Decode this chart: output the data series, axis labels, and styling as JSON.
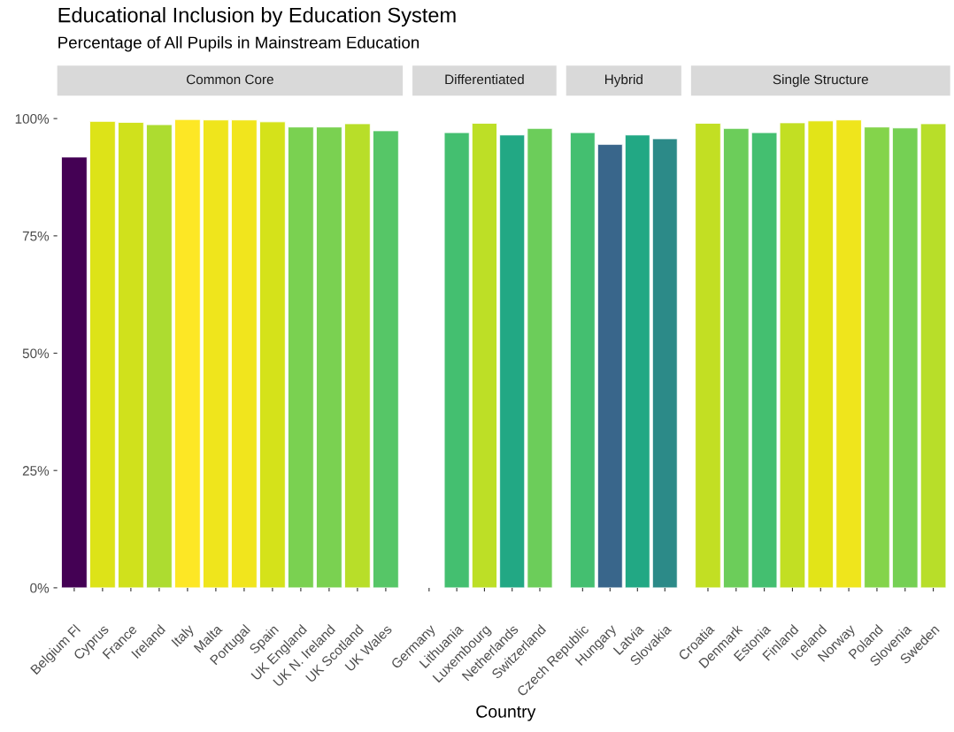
{
  "chart_data": [
    {
      "type": "bar",
      "title": "Educational Inclusion by Education System",
      "subtitle": "Percentage of All Pupils in Mainstream Education",
      "xlabel": "Country",
      "annotations": [
        "Common Core"
      ],
      "categories": [
        "Belgium Fl",
        "Cyprus",
        "France",
        "Ireland",
        "Italy",
        "Malta",
        "Portugal",
        "Spain",
        "UK England",
        "UK N. Ireland",
        "UK Scotland",
        "UK Wales"
      ],
      "values": [
        91.8,
        99.4,
        99.2,
        98.7,
        99.8,
        99.7,
        99.7,
        99.3,
        98.2,
        98.2,
        98.9,
        97.4
      ],
      "colors": [
        "#440154",
        "#dde318",
        "#d0e11c",
        "#addc30",
        "#fde725",
        "#efe51c",
        "#f1e51d",
        "#d5e21a",
        "#7ad151",
        "#7ad151",
        "#b8de29",
        "#56c667"
      ],
      "ylim": [
        0,
        100
      ],
      "yticks": [
        {
          "value": 0,
          "label": "0%"
        },
        {
          "value": 25,
          "label": "25%"
        },
        {
          "value": 50,
          "label": "50%"
        },
        {
          "value": 75,
          "label": "75%"
        },
        {
          "value": 100,
          "label": "100%"
        }
      ],
      "grid": false,
      "legend": false
    },
    {
      "type": "bar",
      "annotations": [
        "Differentiated"
      ],
      "categories": [
        "Germany",
        "Lithuania",
        "Luxembourg",
        "Netherlands",
        "Switzerland"
      ],
      "values": [
        null,
        97.0,
        99.0,
        96.5,
        97.9
      ],
      "colors": [
        "#ffffff",
        "#44bf70",
        "#bddf26",
        "#22a884",
        "#6ccd5a"
      ],
      "ylim": [
        0,
        100
      ],
      "tick_labels": "x",
      "grid": false,
      "legend": false
    },
    {
      "type": "bar",
      "annotations": [
        "Hybrid"
      ],
      "categories": [
        "Czech Republic",
        "Hungary",
        "Latvia",
        "Slovakia"
      ],
      "values": [
        97.0,
        94.5,
        96.5,
        95.7
      ],
      "colors": [
        "#44bf70",
        "#39668b",
        "#22a884",
        "#2c8a88"
      ],
      "ylim": [
        0,
        100
      ],
      "tick_labels": "x",
      "grid": false,
      "legend": false
    },
    {
      "type": "bar",
      "annotations": [
        "Single Structure"
      ],
      "categories": [
        "Croatia",
        "Denmark",
        "Estonia",
        "Finland",
        "Iceland",
        "Norway",
        "Poland",
        "Slovenia",
        "Sweden"
      ],
      "values": [
        99.0,
        97.9,
        97.0,
        99.1,
        99.5,
        99.7,
        98.2,
        98.0,
        98.9
      ],
      "colors": [
        "#c2df23",
        "#6ccd5a",
        "#44bf70",
        "#c2df23",
        "#e2e418",
        "#efe51c",
        "#84d44b",
        "#75d054",
        "#b8de29"
      ],
      "ylim": [
        0,
        100
      ],
      "tick_labels": "x",
      "grid": false,
      "legend": false
    }
  ]
}
